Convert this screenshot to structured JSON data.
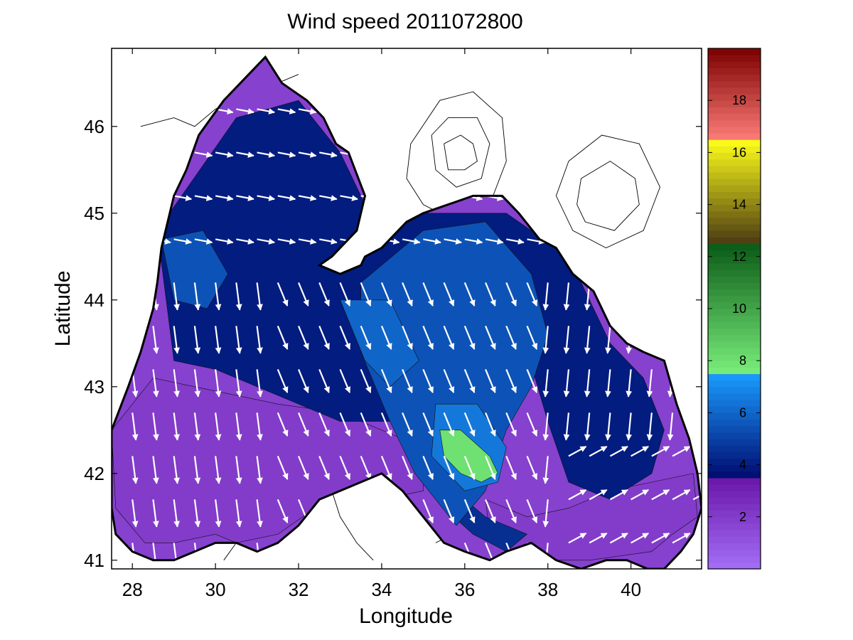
{
  "title": "Wind speed 2011072800",
  "xlabel": "Longitude",
  "ylabel": "Latitude",
  "colors": {
    "background": "#ffffff",
    "land_contour": "#000000",
    "coastline": "#000000",
    "arrow": "#ffffff"
  },
  "chart_data": {
    "type": "heatmap",
    "title": "Wind speed 2011072800",
    "xlabel": "Longitude",
    "ylabel": "Latitude",
    "xlim": [
      27.5,
      41.7
    ],
    "ylim": [
      40.9,
      46.9
    ],
    "xticks": [
      28,
      30,
      32,
      34,
      36,
      38,
      40
    ],
    "yticks": [
      41,
      42,
      43,
      44,
      45,
      46
    ],
    "grid": false,
    "field": "wind speed contours with wind direction vectors over the Black Sea",
    "colorbar": {
      "location": "right",
      "range": [
        0,
        20
      ],
      "ticks": [
        2,
        4,
        6,
        8,
        10,
        12,
        14,
        16,
        18
      ],
      "segments": [
        {
          "from": 0,
          "to": 3.5,
          "colors": [
            "#a46ff8",
            "#6a16a8"
          ]
        },
        {
          "from": 3.5,
          "to": 7.5,
          "colors": [
            "#000a6e",
            "#1a9cff"
          ]
        },
        {
          "from": 7.5,
          "to": 12.5,
          "colors": [
            "#7aef7c",
            "#0a5a16"
          ]
        },
        {
          "from": 12.5,
          "to": 16.5,
          "colors": [
            "#4a3a12",
            "#ffff1a"
          ]
        },
        {
          "from": 16.5,
          "to": 20,
          "colors": [
            "#fd7d78",
            "#7c0000"
          ]
        }
      ]
    },
    "speed_regions": [
      {
        "speed": 2.0,
        "lons": [
          27.5,
          28.5,
          29.5,
          31.5,
          33.0,
          34.5,
          35.0,
          35.0,
          34.0,
          33.0,
          31.5,
          30.5,
          30.0,
          29.0,
          28.3,
          27.6
        ],
        "lats": [
          42.5,
          43.1,
          43.0,
          42.8,
          42.7,
          42.4,
          42.1,
          41.8,
          41.7,
          41.8,
          41.3,
          41.2,
          41.3,
          41.2,
          41.2,
          41.6
        ]
      },
      {
        "speed": 2.0,
        "lons": [
          36.5,
          37.5,
          38.5,
          39.5,
          40.5,
          41.5,
          41.6,
          41.0,
          40.5,
          39.0,
          37.8,
          37.0,
          36.6
        ],
        "lats": [
          41.7,
          41.5,
          41.6,
          41.8,
          41.9,
          42.0,
          41.5,
          41.3,
          41.1,
          41.0,
          41.0,
          41.1,
          41.3
        ]
      },
      {
        "speed": 2.5,
        "lons": [
          38.1,
          38.5,
          39.0,
          39.3,
          39.4,
          39.1,
          38.6,
          38.3
        ],
        "lats": [
          43.5,
          43.7,
          43.3,
          42.8,
          42.5,
          42.4,
          42.6,
          43.0
        ]
      },
      {
        "speed": 4.0,
        "lons": [
          30.5,
          32.0,
          33.0,
          34.0,
          35.0,
          37.0,
          38.5,
          39.5,
          40.3,
          40.8,
          40.5,
          39.5,
          38.5,
          38.0,
          37.2,
          36.5,
          35.5,
          34.5,
          33.0,
          31.5,
          30.0,
          29.0,
          28.6
        ],
        "lats": [
          46.1,
          46.3,
          45.7,
          44.7,
          45.0,
          45.0,
          44.5,
          43.5,
          43.1,
          42.5,
          42.0,
          41.7,
          41.9,
          42.6,
          43.9,
          43.5,
          43.0,
          42.6,
          42.6,
          42.9,
          43.2,
          43.3,
          44.8
        ]
      },
      {
        "speed": 4.5,
        "lons": [
          35.0,
          36.5,
          37.5,
          37.0,
          36.2,
          35.5
        ],
        "lats": [
          42.1,
          41.5,
          41.3,
          41.1,
          41.3,
          41.6
        ]
      },
      {
        "speed": 5.5,
        "lons": [
          33.5,
          35.0,
          36.5,
          37.6,
          38.0,
          37.6,
          37.0,
          36.5,
          35.8,
          34.8,
          34.2,
          33.5
        ],
        "lats": [
          44.2,
          44.8,
          44.9,
          44.3,
          43.6,
          43.0,
          42.5,
          41.8,
          41.4,
          42.0,
          42.6,
          43.4
        ]
      },
      {
        "speed": 5.5,
        "lons": [
          28.7,
          29.7,
          30.3,
          29.8,
          29.0
        ],
        "lats": [
          44.7,
          44.8,
          44.3,
          43.9,
          44.0
        ]
      },
      {
        "speed": 6.0,
        "lons": [
          33.0,
          34.2,
          34.9,
          34.2,
          33.6
        ],
        "lats": [
          44.0,
          44.0,
          43.3,
          43.0,
          43.3
        ]
      },
      {
        "speed": 6.5,
        "lons": [
          35.3,
          36.3,
          37.0,
          36.8,
          36.0,
          35.2
        ],
        "lats": [
          42.8,
          42.8,
          42.3,
          41.9,
          41.8,
          42.2
        ]
      },
      {
        "speed": 8.0,
        "lons": [
          35.4,
          35.9,
          36.6,
          36.8,
          36.4,
          35.9,
          35.5
        ],
        "lats": [
          42.5,
          42.5,
          42.2,
          42.0,
          41.9,
          42.0,
          42.2
        ]
      }
    ],
    "coastline": {
      "lons": [
        27.5,
        27.9,
        28.2,
        28.5,
        28.6,
        28.7,
        29.0,
        29.3,
        29.6,
        30.2,
        30.8,
        31.2,
        31.6,
        32.2,
        32.6,
        32.9,
        33.2,
        33.6,
        33.4,
        33.0,
        32.8,
        32.5,
        33.0,
        33.5,
        33.6,
        34.0,
        34.6,
        35.0,
        35.6,
        36.2,
        36.6,
        36.9,
        37.3,
        37.8,
        38.2,
        38.6,
        39.1,
        39.5,
        39.9,
        40.3,
        40.8,
        41.1,
        41.4,
        41.6,
        41.7,
        41.5,
        41.2,
        40.8,
        40.4,
        39.9,
        39.4,
        38.8,
        38.2,
        37.6,
        37.0,
        36.6,
        36.0,
        35.5,
        35.0,
        34.5,
        34.0,
        33.5,
        33.0,
        32.5,
        32.0,
        31.5,
        31.0,
        30.5,
        30.0,
        29.5,
        29.0,
        28.5,
        28.0,
        27.6,
        27.5
      ],
      "lats": [
        42.5,
        43.0,
        43.4,
        43.9,
        44.2,
        44.6,
        45.2,
        45.5,
        45.9,
        46.3,
        46.6,
        46.8,
        46.5,
        46.3,
        46.1,
        45.8,
        45.7,
        45.2,
        44.8,
        44.6,
        44.5,
        44.4,
        44.3,
        44.4,
        44.5,
        44.6,
        44.9,
        45.0,
        45.1,
        45.2,
        45.2,
        45.2,
        45.0,
        44.7,
        44.6,
        44.3,
        44.1,
        43.7,
        43.5,
        43.4,
        43.3,
        42.8,
        42.4,
        42.0,
        41.6,
        41.3,
        41.1,
        40.9,
        40.9,
        41.0,
        41.0,
        40.9,
        41.0,
        41.2,
        41.1,
        41.0,
        41.1,
        41.2,
        41.5,
        41.8,
        42.0,
        41.9,
        41.8,
        41.7,
        41.4,
        41.2,
        41.1,
        41.2,
        41.2,
        41.1,
        41.0,
        41.0,
        41.1,
        41.3,
        41.6
      ]
    },
    "land_contours": [
      {
        "lons": [
          34.7,
          35.4,
          36.2,
          36.9,
          37.0,
          36.6,
          35.8,
          35.0,
          34.6,
          34.7
        ],
        "lats": [
          45.8,
          46.3,
          46.4,
          46.1,
          45.6,
          45.1,
          44.9,
          45.1,
          45.4,
          45.8
        ]
      },
      {
        "lons": [
          35.2,
          35.6,
          36.3,
          36.6,
          36.4,
          35.8,
          35.3,
          35.2
        ],
        "lats": [
          45.9,
          46.1,
          46.1,
          45.8,
          45.4,
          45.3,
          45.5,
          45.9
        ]
      },
      {
        "lons": [
          35.5,
          35.9,
          36.2,
          36.3,
          36.0,
          35.6,
          35.5
        ],
        "lats": [
          45.8,
          45.9,
          45.8,
          45.6,
          45.5,
          45.5,
          45.8
        ]
      },
      {
        "lons": [
          38.5,
          39.3,
          40.2,
          40.7,
          40.3,
          39.4,
          38.6,
          38.2,
          38.5
        ],
        "lats": [
          45.6,
          45.9,
          45.8,
          45.3,
          44.8,
          44.6,
          44.8,
          45.2,
          45.6
        ]
      },
      {
        "lons": [
          38.8,
          39.5,
          40.1,
          40.2,
          39.6,
          38.9,
          38.7,
          38.8
        ],
        "lats": [
          45.4,
          45.6,
          45.4,
          45.1,
          44.8,
          44.9,
          45.1,
          45.4
        ]
      },
      {
        "lons": [
          30.2,
          30.5,
          31.0,
          31.5,
          32.0,
          32.5,
          32.8,
          33.0,
          33.4,
          33.8
        ],
        "lats": [
          41.0,
          41.2,
          41.3,
          41.6,
          41.8,
          41.9,
          41.8,
          41.5,
          41.2,
          41.0
        ]
      },
      {
        "lons": [
          35.3,
          35.7,
          36.4,
          37.2,
          38.1,
          38.8,
          39.4,
          40.0
        ],
        "lats": [
          41.2,
          41.3,
          41.4,
          41.3,
          41.4,
          41.5,
          41.4,
          41.3
        ]
      },
      {
        "lons": [
          29.0,
          29.5,
          30.0,
          30.3,
          30.8,
          31.0
        ],
        "lats": [
          42.4,
          42.1,
          41.9,
          41.7,
          41.5,
          41.4
        ]
      },
      {
        "lons": [
          28.2,
          29.0,
          29.5,
          30.0,
          30.8,
          31.5,
          32.0
        ],
        "lats": [
          46.0,
          46.1,
          46.0,
          46.2,
          46.4,
          46.5,
          46.6
        ]
      }
    ],
    "wind_vectors": {
      "type": "quiver",
      "grid": "regular 0.5 degree sea points",
      "dominant_direction": "north-west to south-east over the northern and central basin, turning toward the east in the south-east corner"
    }
  }
}
